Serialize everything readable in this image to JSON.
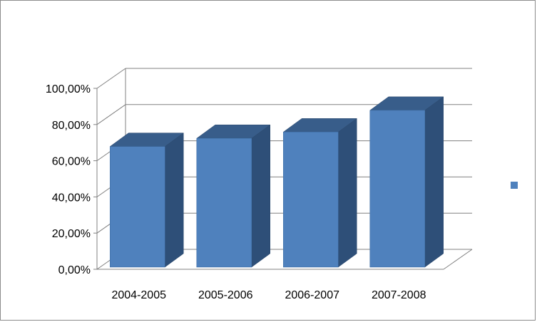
{
  "chart_data": {
    "type": "bar",
    "categories": [
      "2004-2005",
      "2005-2006",
      "2006-2007",
      "2007-2008"
    ],
    "series": [
      {
        "values": [
          71,
          75.5,
          79,
          91
        ]
      }
    ],
    "ylim": [
      0,
      100
    ],
    "yticks": [
      "0,00%",
      "20,00%",
      "40,00%",
      "60,00%",
      "80,00%",
      "100,00%"
    ],
    "grid": true,
    "legend_position": "right",
    "colors": {
      "front": "#4f81bd",
      "top": "#385d8a",
      "side": "#2e4f78",
      "grid": "#808080",
      "legend_swatch": "#4f81bd"
    }
  }
}
